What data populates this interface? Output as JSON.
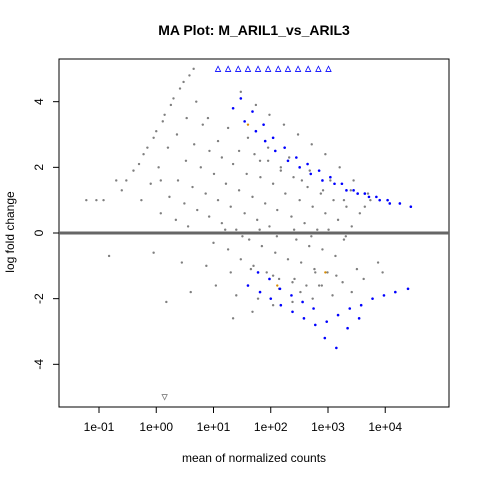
{
  "chart_data": {
    "type": "scatter",
    "title": "MA Plot: M_ARIL1_vs_ARIL3",
    "xlabel": "mean of normalized counts",
    "ylabel": "log fold change",
    "x_scale": "log10",
    "xlim": [
      0.02,
      130000
    ],
    "ylim": [
      -5.3,
      5.3
    ],
    "x_ticks": [
      0.1,
      1,
      10,
      100,
      1000,
      10000
    ],
    "x_tick_labels": [
      "1e-01",
      "1e+00",
      "1e+01",
      "1e+02",
      "1e+03",
      "1e+04"
    ],
    "y_ticks": [
      -4,
      -2,
      0,
      2,
      4
    ],
    "y_tick_labels": [
      "-4",
      "-2",
      "0",
      "2",
      "4"
    ],
    "hline_y": 0,
    "grid": false,
    "legend": "none",
    "colors": {
      "not_significant": "#7f7f7f",
      "significant": "#0000ff",
      "hline": "#666666",
      "highlight": "#d98c00"
    },
    "series": [
      {
        "group": "not_significant",
        "marker": "circle",
        "x": [
          0.06,
          0.09,
          0.12,
          0.2,
          0.3,
          0.5,
          0.7,
          1.0,
          1.4,
          2.0,
          3.0,
          4.5,
          0.25,
          0.4,
          0.6,
          0.9,
          1.3,
          1.8,
          2.6,
          3.8,
          0.55,
          0.8,
          1.1,
          1.6,
          2.3,
          3.4,
          5.0,
          1.2,
          1.7,
          2.4,
          3.3,
          4.6,
          6.5,
          2.2,
          3.1,
          4.3,
          6.0,
          8.5,
          3.6,
          5.2,
          7.3,
          10.2,
          14.0,
          6.0,
          8.4,
          12.0,
          16.5,
          22.0,
          10,
          14,
          20,
          28,
          38,
          52,
          18,
          25,
          35,
          48,
          66,
          90,
          30,
          42,
          58,
          80,
          110,
          150,
          50,
          70,
          95,
          130,
          180,
          250,
          85,
          120,
          165,
          230,
          320,
          440,
          140,
          200,
          280,
          390,
          540,
          750,
          240,
          340,
          470,
          650,
          900,
          1250,
          420,
          580,
          800,
          1100,
          1500,
          2100,
          700,
          980,
          1350,
          1900,
          2600,
          3600,
          0.25,
          0.5,
          1.0,
          2.0,
          4.0,
          8.0,
          16,
          32,
          64,
          128,
          256,
          512,
          1024,
          2048,
          4096,
          0.15,
          0.9,
          2.8,
          7.5,
          20,
          45,
          110,
          260,
          600,
          1400,
          3200,
          7500,
          1.5,
          4.0,
          11,
          25,
          60,
          140,
          330,
          780,
          1800,
          4200,
          9000,
          12,
          28,
          65,
          150,
          350,
          820,
          1900,
          4400,
          8,
          18,
          40,
          90,
          210,
          480,
          1100,
          2500,
          5500,
          0.03,
          0.04,
          0.05,
          0.07,
          0.1,
          0.15,
          0.25,
          0.4,
          1.2,
          30,
          55,
          95,
          170,
          300,
          520,
          900,
          1600,
          2800,
          5000,
          22,
          48,
          110,
          240,
          540,
          1200,
          2600
        ],
        "y": [
          1.0,
          1.0,
          1.0,
          1.6,
          1.6,
          2.1,
          2.6,
          3.1,
          3.6,
          4.1,
          4.6,
          5.0,
          1.3,
          1.9,
          2.4,
          2.9,
          3.4,
          3.9,
          4.4,
          4.8,
          1.0,
          1.5,
          2.0,
          2.6,
          3.0,
          3.5,
          4.0,
          0.6,
          1.1,
          1.6,
          2.2,
          2.7,
          3.3,
          0.4,
          0.9,
          1.4,
          2.0,
          2.5,
          0.2,
          0.7,
          1.2,
          1.8,
          2.3,
          0.0,
          0.5,
          1.0,
          1.5,
          2.1,
          -0.3,
          0.3,
          0.8,
          1.3,
          1.8,
          2.4,
          -0.5,
          0.1,
          0.6,
          1.1,
          1.7,
          2.2,
          -0.8,
          -0.2,
          0.4,
          0.9,
          1.5,
          2.0,
          -1.0,
          -0.4,
          0.2,
          0.7,
          1.2,
          1.7,
          -1.2,
          -0.6,
          0.0,
          0.5,
          1.0,
          1.4,
          -1.4,
          -0.8,
          -0.2,
          0.3,
          0.8,
          1.2,
          -1.5,
          -0.9,
          -0.4,
          0.1,
          0.6,
          1.0,
          -1.6,
          -1.1,
          -0.5,
          0.0,
          0.4,
          0.8,
          -1.6,
          -1.2,
          -0.7,
          -0.2,
          0.2,
          0.6,
          0.0,
          0.0,
          0.0,
          0.0,
          0.0,
          0.0,
          0.1,
          -0.1,
          0.1,
          -0.1,
          0.1,
          -0.1,
          0.1,
          -0.1,
          0.0,
          -0.7,
          -0.6,
          -0.9,
          -1.0,
          -1.2,
          -1.1,
          -1.3,
          -1.4,
          -1.2,
          -1.3,
          -1.1,
          -0.9,
          -2.1,
          -1.8,
          -1.6,
          -1.9,
          -2.0,
          -1.7,
          -1.8,
          -1.6,
          -1.5,
          -1.4,
          -1.2,
          2.8,
          2.5,
          2.2,
          1.9,
          1.6,
          1.3,
          1.0,
          0.8,
          3.5,
          3.2,
          2.9,
          2.6,
          2.3,
          1.9,
          1.6,
          1.3,
          1.0,
          0.0,
          0.0,
          0.0,
          0.0,
          0.0,
          0.0,
          0.0,
          0.0,
          1.6,
          4.3,
          3.9,
          3.6,
          3.3,
          3.0,
          2.7,
          2.4,
          2.0,
          1.6,
          1.2,
          -2.6,
          -2.4,
          -2.2,
          -2.1,
          -2.0,
          -1.9,
          -1.8
        ]
      },
      {
        "group": "significant",
        "marker": "circle",
        "x": [
          22,
          35,
          55,
          80,
          120,
          200,
          320,
          500,
          800,
          1300,
          2100,
          3300,
          5200,
          8000,
          12000,
          18000,
          28000,
          40,
          65,
          100,
          150,
          240,
          380,
          600,
          950,
          1500,
          2400,
          3800,
          6000,
          9500,
          15000,
          25000,
          30,
          48,
          75,
          110,
          175,
          280,
          440,
          700,
          1100,
          1750,
          2800,
          4400,
          7000,
          11000,
          60,
          95,
          145,
          230,
          360,
          560,
          880,
          1400,
          2200,
          3500
        ],
        "y": [
          3.8,
          3.4,
          3.1,
          2.8,
          2.5,
          2.2,
          2.0,
          1.8,
          1.6,
          1.5,
          1.3,
          1.2,
          1.1,
          1.0,
          0.9,
          0.9,
          0.8,
          -1.6,
          -1.8,
          -2.0,
          -2.2,
          -2.4,
          -2.6,
          -2.8,
          -2.7,
          -2.5,
          -2.3,
          -2.2,
          -2.0,
          -1.9,
          -1.8,
          -1.7,
          4.1,
          3.7,
          3.3,
          2.9,
          2.6,
          2.3,
          2.1,
          1.9,
          1.7,
          1.5,
          1.3,
          1.2,
          1.1,
          1.0,
          -1.2,
          -1.4,
          -1.7,
          -1.9,
          -2.1,
          -2.3,
          -3.2,
          -3.5,
          -2.9,
          -2.6
        ]
      },
      {
        "group": "significant",
        "marker": "triangle-up",
        "x": [
          12,
          18,
          27,
          40,
          60,
          90,
          135,
          200,
          300,
          450,
          680,
          1020
        ],
        "y": [
          5.0,
          5.0,
          5.0,
          5.0,
          5.0,
          5.0,
          5.0,
          5.0,
          5.0,
          5.0,
          5.0,
          5.0
        ]
      },
      {
        "group": "not_significant",
        "marker": "triangle-down",
        "x": [
          1.4
        ],
        "y": [
          -5.0
        ]
      },
      {
        "group": "highlight",
        "marker": "circle",
        "x": [
          40,
          130,
          900
        ],
        "y": [
          3.3,
          -1.6,
          -1.2
        ]
      }
    ]
  }
}
